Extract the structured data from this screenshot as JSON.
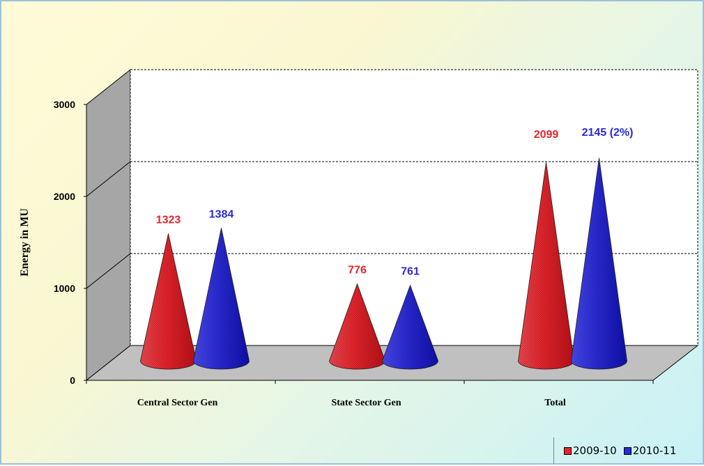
{
  "chart_data": {
    "type": "bar",
    "bar_shape": "cone-3d",
    "ylabel": "Energy in MU",
    "ylim": [
      0,
      3000
    ],
    "yticks": [
      "0",
      "1000",
      "2000",
      "3000"
    ],
    "grid": true,
    "categories": [
      "Central Sector Gen",
      "State Sector Gen",
      "Total"
    ],
    "series": [
      {
        "name": "2009-10",
        "values": [
          1323,
          776,
          2099
        ],
        "color": "#e8242c"
      },
      {
        "name": "2010-11",
        "values": [
          1384,
          761,
          2145
        ],
        "color": "#2a2ad8"
      }
    ],
    "data_labels": [
      [
        "1323",
        "776",
        "2099"
      ],
      [
        "1384",
        "761",
        "2145 (2%)"
      ]
    ],
    "legend_position": "bottom-right"
  }
}
